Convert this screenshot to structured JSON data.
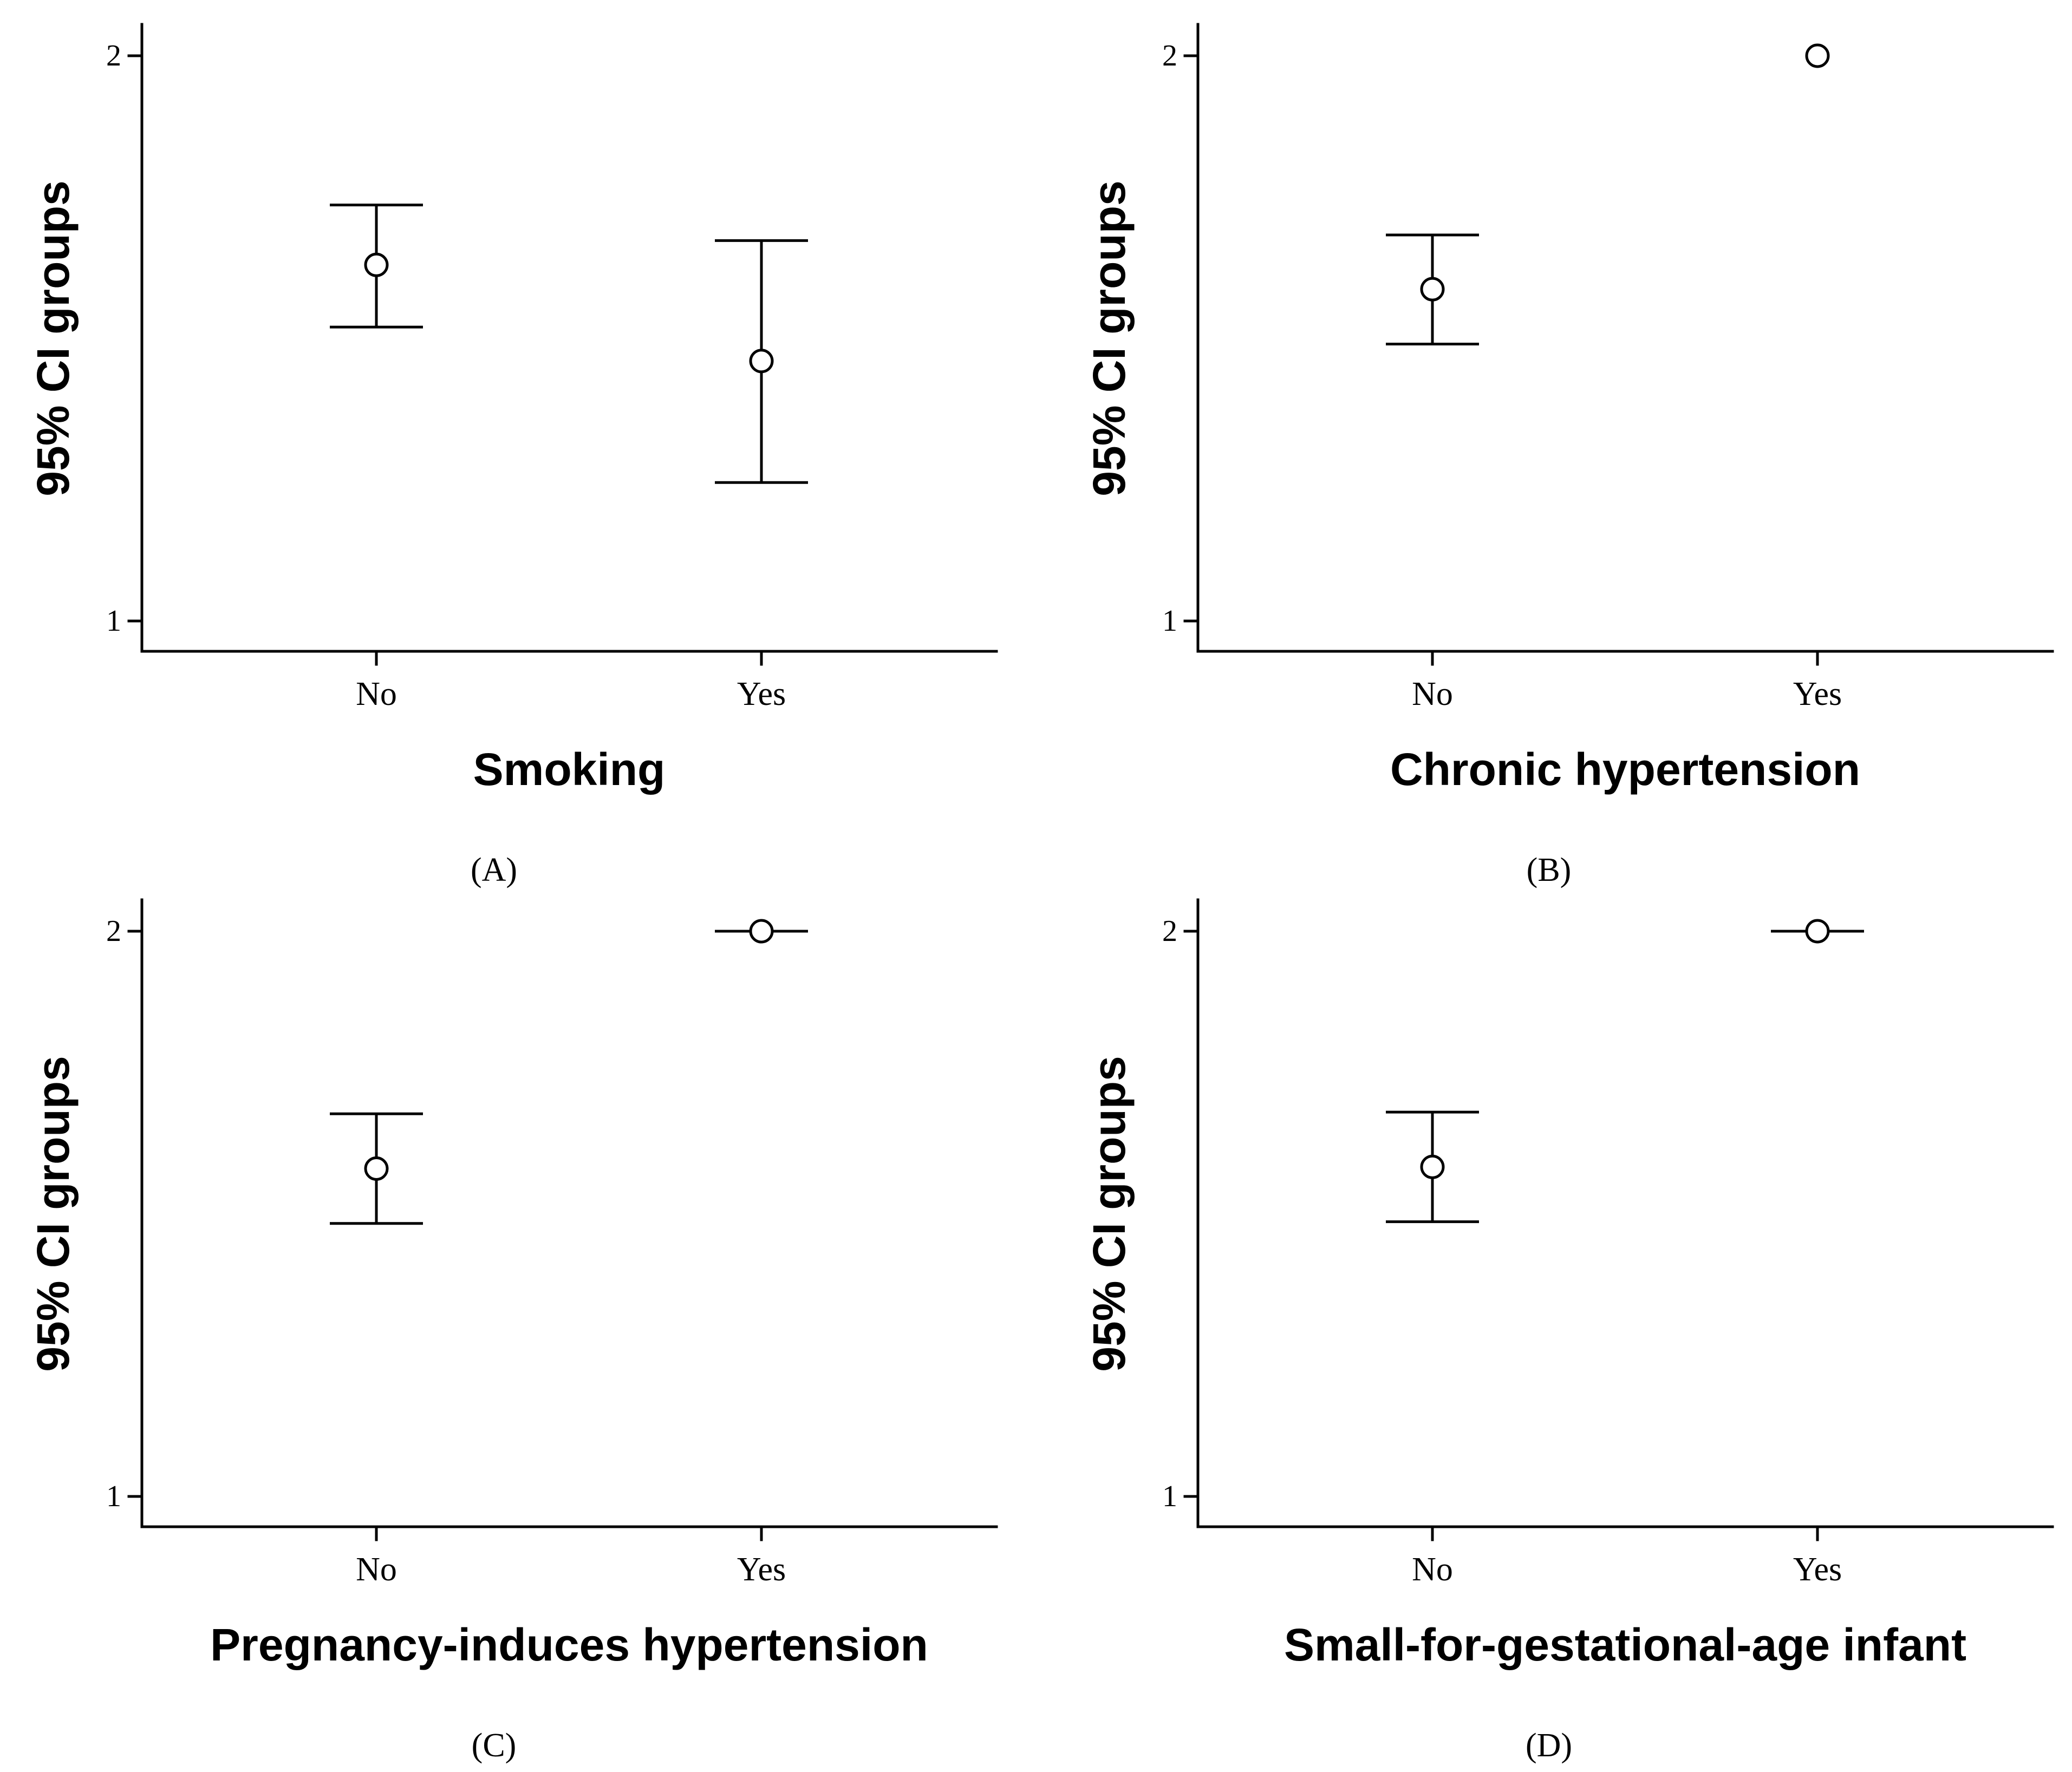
{
  "chart_data": [
    {
      "type": "errorbar",
      "panel_label": "(A)",
      "xlabel": "Smoking",
      "ylabel": "95% CI groups",
      "ylim": [
        1,
        2
      ],
      "yticks": [
        "1",
        "2"
      ],
      "categories": [
        "No",
        "Yes"
      ],
      "series": [
        {
          "name": "95% CI",
          "mean": [
            1.63,
            1.46
          ],
          "lower": [
            1.52,
            1.245
          ],
          "upper": [
            1.736,
            1.673
          ]
        }
      ]
    },
    {
      "type": "errorbar",
      "panel_label": "(B)",
      "xlabel": "Chronic hypertension",
      "ylabel": "95% CI groups",
      "ylim": [
        1,
        2
      ],
      "yticks": [
        "1",
        "2"
      ],
      "categories": [
        "No",
        "Yes"
      ],
      "series": [
        {
          "name": "95% CI",
          "mean": [
            1.587,
            2.0
          ],
          "lower": [
            1.49,
            2.0
          ],
          "upper": [
            1.683,
            2.0
          ]
        }
      ]
    },
    {
      "type": "errorbar",
      "panel_label": "(C)",
      "xlabel": "Pregnancy-induces hypertension",
      "ylabel": "95% CI groups",
      "ylim": [
        1,
        2
      ],
      "yticks": [
        "1",
        "2"
      ],
      "categories": [
        "No",
        "Yes"
      ],
      "series": [
        {
          "name": "95% CI",
          "mean": [
            1.58,
            2.0
          ],
          "lower": [
            1.483,
            2.0
          ],
          "upper": [
            1.677,
            2.0
          ]
        }
      ]
    },
    {
      "type": "errorbar",
      "panel_label": "(D)",
      "xlabel": "Small-for-gestational-age infant",
      "ylabel": "95% CI groups",
      "ylim": [
        1,
        2
      ],
      "yticks": [
        "1",
        "2"
      ],
      "categories": [
        "No",
        "Yes"
      ],
      "series": [
        {
          "name": "95% CI",
          "mean": [
            1.583,
            2.0
          ],
          "lower": [
            1.486,
            2.0
          ],
          "upper": [
            1.68,
            2.0
          ]
        }
      ]
    }
  ]
}
